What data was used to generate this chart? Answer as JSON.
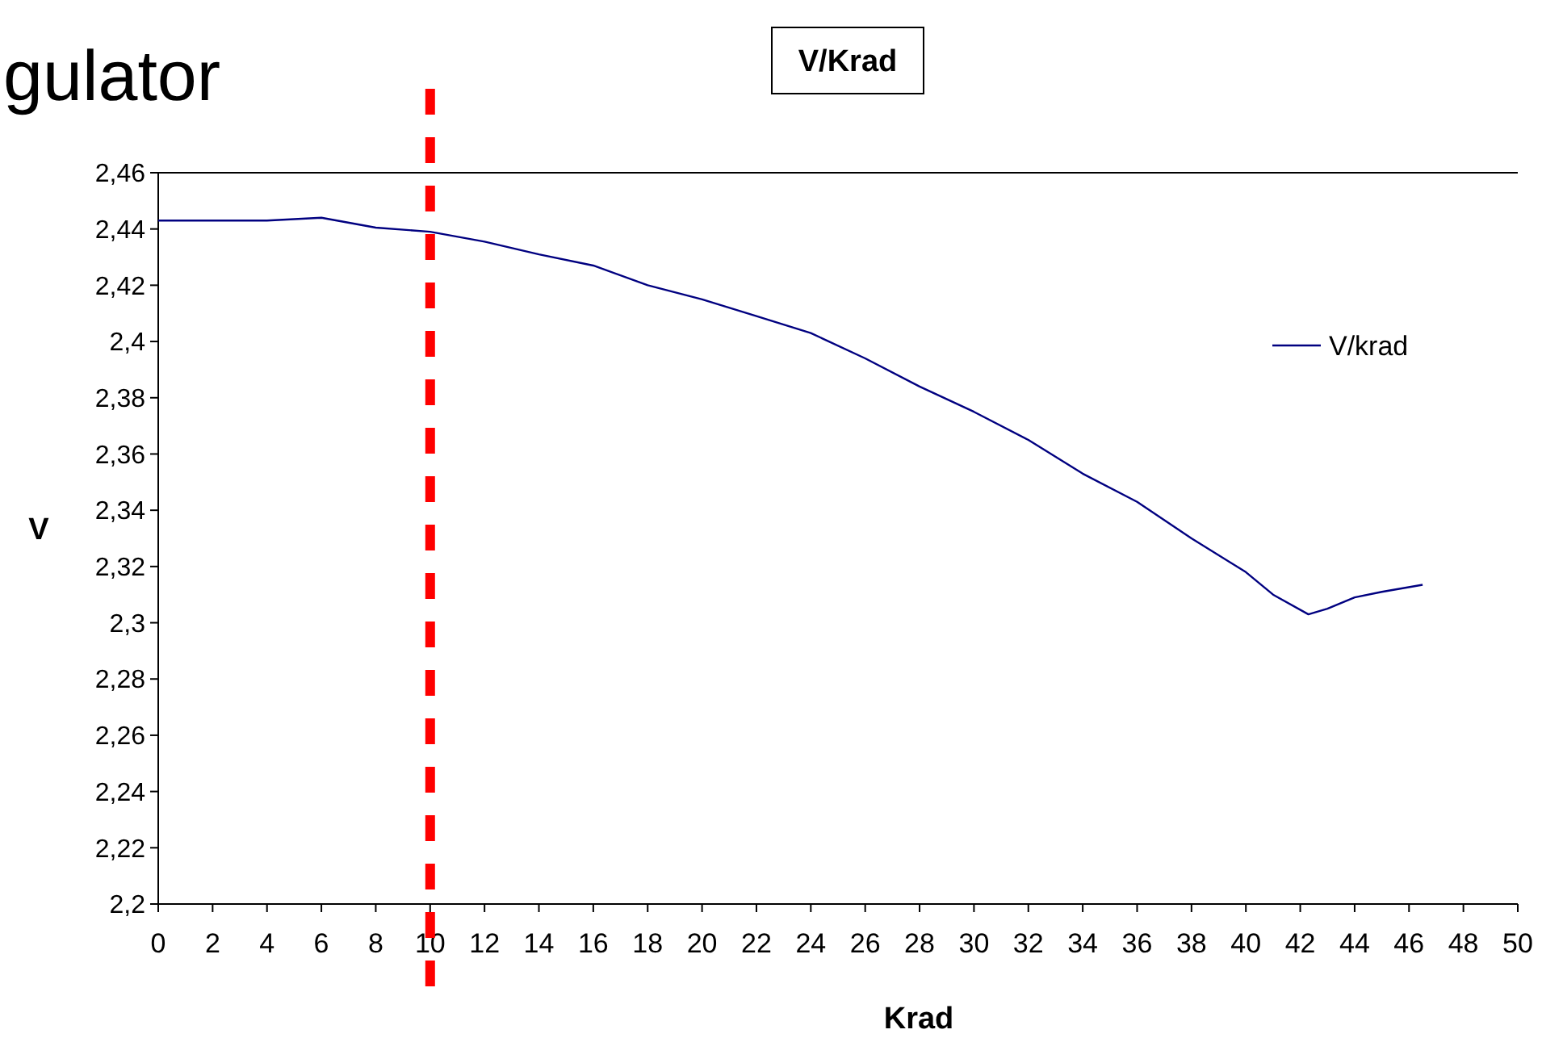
{
  "chart_data": {
    "type": "line",
    "title": "V/Krad",
    "xlabel": "Krad",
    "ylabel": "V",
    "annotations": [
      "gulator"
    ],
    "xlim": [
      0,
      50
    ],
    "xticks": [
      0,
      2,
      4,
      6,
      8,
      10,
      12,
      14,
      16,
      18,
      20,
      22,
      24,
      26,
      28,
      30,
      32,
      34,
      36,
      38,
      40,
      42,
      44,
      46,
      48,
      50
    ],
    "ylim": [
      2.2,
      2.46
    ],
    "yticks": [
      {
        "value": 2.2,
        "label": "2,2"
      },
      {
        "value": 2.22,
        "label": "2,22"
      },
      {
        "value": 2.24,
        "label": "2,24"
      },
      {
        "value": 2.26,
        "label": "2,26"
      },
      {
        "value": 2.28,
        "label": "2,28"
      },
      {
        "value": 2.3,
        "label": "2,3"
      },
      {
        "value": 2.32,
        "label": "2,32"
      },
      {
        "value": 2.34,
        "label": "2,34"
      },
      {
        "value": 2.36,
        "label": "2,36"
      },
      {
        "value": 2.38,
        "label": "2,38"
      },
      {
        "value": 2.4,
        "label": "2,4"
      },
      {
        "value": 2.42,
        "label": "2,42"
      },
      {
        "value": 2.44,
        "label": "2,44"
      },
      {
        "value": 2.46,
        "label": "2,46"
      }
    ],
    "grid": false,
    "legend": "right",
    "marker": "none",
    "line_style": "solid",
    "ref_lines": [
      {
        "axis": "x",
        "value": 10,
        "color": "#ff0000",
        "line_style": "dashed"
      }
    ],
    "series": [
      {
        "name": "V/krad",
        "color": "#000080",
        "x": [
          0,
          2,
          4,
          6,
          8,
          10,
          12,
          14,
          16,
          18,
          20,
          22,
          24,
          26,
          28,
          30,
          32,
          34,
          36,
          38,
          40,
          41,
          42.3,
          43,
          44,
          45,
          46.5
        ],
        "values": [
          2.443,
          2.443,
          2.443,
          2.444,
          2.4405,
          2.439,
          2.4355,
          2.431,
          2.427,
          2.42,
          2.415,
          2.409,
          2.403,
          2.394,
          2.384,
          2.375,
          2.365,
          2.353,
          2.343,
          2.33,
          2.318,
          2.31,
          2.303,
          2.305,
          2.309,
          2.311,
          2.3135
        ]
      }
    ]
  }
}
